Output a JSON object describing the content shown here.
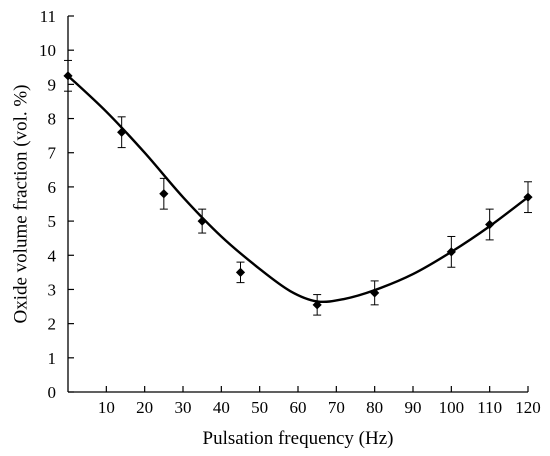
{
  "chart_data": {
    "type": "scatter",
    "title": "",
    "xlabel": "Pulsation frequency (Hz)",
    "ylabel": "Oxide volume fraction (vol. %)",
    "xlim": [
      0,
      120
    ],
    "ylim": [
      0,
      11
    ],
    "x_ticks": [
      10,
      20,
      30,
      40,
      50,
      60,
      70,
      80,
      90,
      100,
      110,
      120
    ],
    "y_ticks": [
      0,
      1,
      2,
      3,
      4,
      5,
      6,
      7,
      8,
      9,
      10,
      11
    ],
    "grid": false,
    "legend": "none",
    "series": [
      {
        "type": "scatter",
        "marker": "diamond",
        "color": "#000000",
        "points": [
          {
            "x": 0,
            "y": 9.25,
            "err": 0.45
          },
          {
            "x": 14,
            "y": 7.6,
            "err": 0.45
          },
          {
            "x": 25,
            "y": 5.8,
            "err": 0.45
          },
          {
            "x": 35,
            "y": 5.0,
            "err": 0.35
          },
          {
            "x": 45,
            "y": 3.5,
            "err": 0.3
          },
          {
            "x": 65,
            "y": 2.55,
            "err": 0.3
          },
          {
            "x": 80,
            "y": 2.9,
            "err": 0.35
          },
          {
            "x": 100,
            "y": 4.1,
            "err": 0.45
          },
          {
            "x": 110,
            "y": 4.9,
            "err": 0.45
          },
          {
            "x": 120,
            "y": 5.7,
            "err": 0.45
          }
        ]
      },
      {
        "type": "line",
        "style": "smooth",
        "color": "#000000",
        "points": [
          {
            "x": 0,
            "y": 9.25
          },
          {
            "x": 10,
            "y": 8.2
          },
          {
            "x": 20,
            "y": 7.0
          },
          {
            "x": 30,
            "y": 5.7
          },
          {
            "x": 40,
            "y": 4.55
          },
          {
            "x": 50,
            "y": 3.6
          },
          {
            "x": 58,
            "y": 2.95
          },
          {
            "x": 65,
            "y": 2.65
          },
          {
            "x": 72,
            "y": 2.72
          },
          {
            "x": 80,
            "y": 2.98
          },
          {
            "x": 90,
            "y": 3.45
          },
          {
            "x": 100,
            "y": 4.1
          },
          {
            "x": 110,
            "y": 4.85
          },
          {
            "x": 120,
            "y": 5.7
          }
        ]
      }
    ]
  }
}
